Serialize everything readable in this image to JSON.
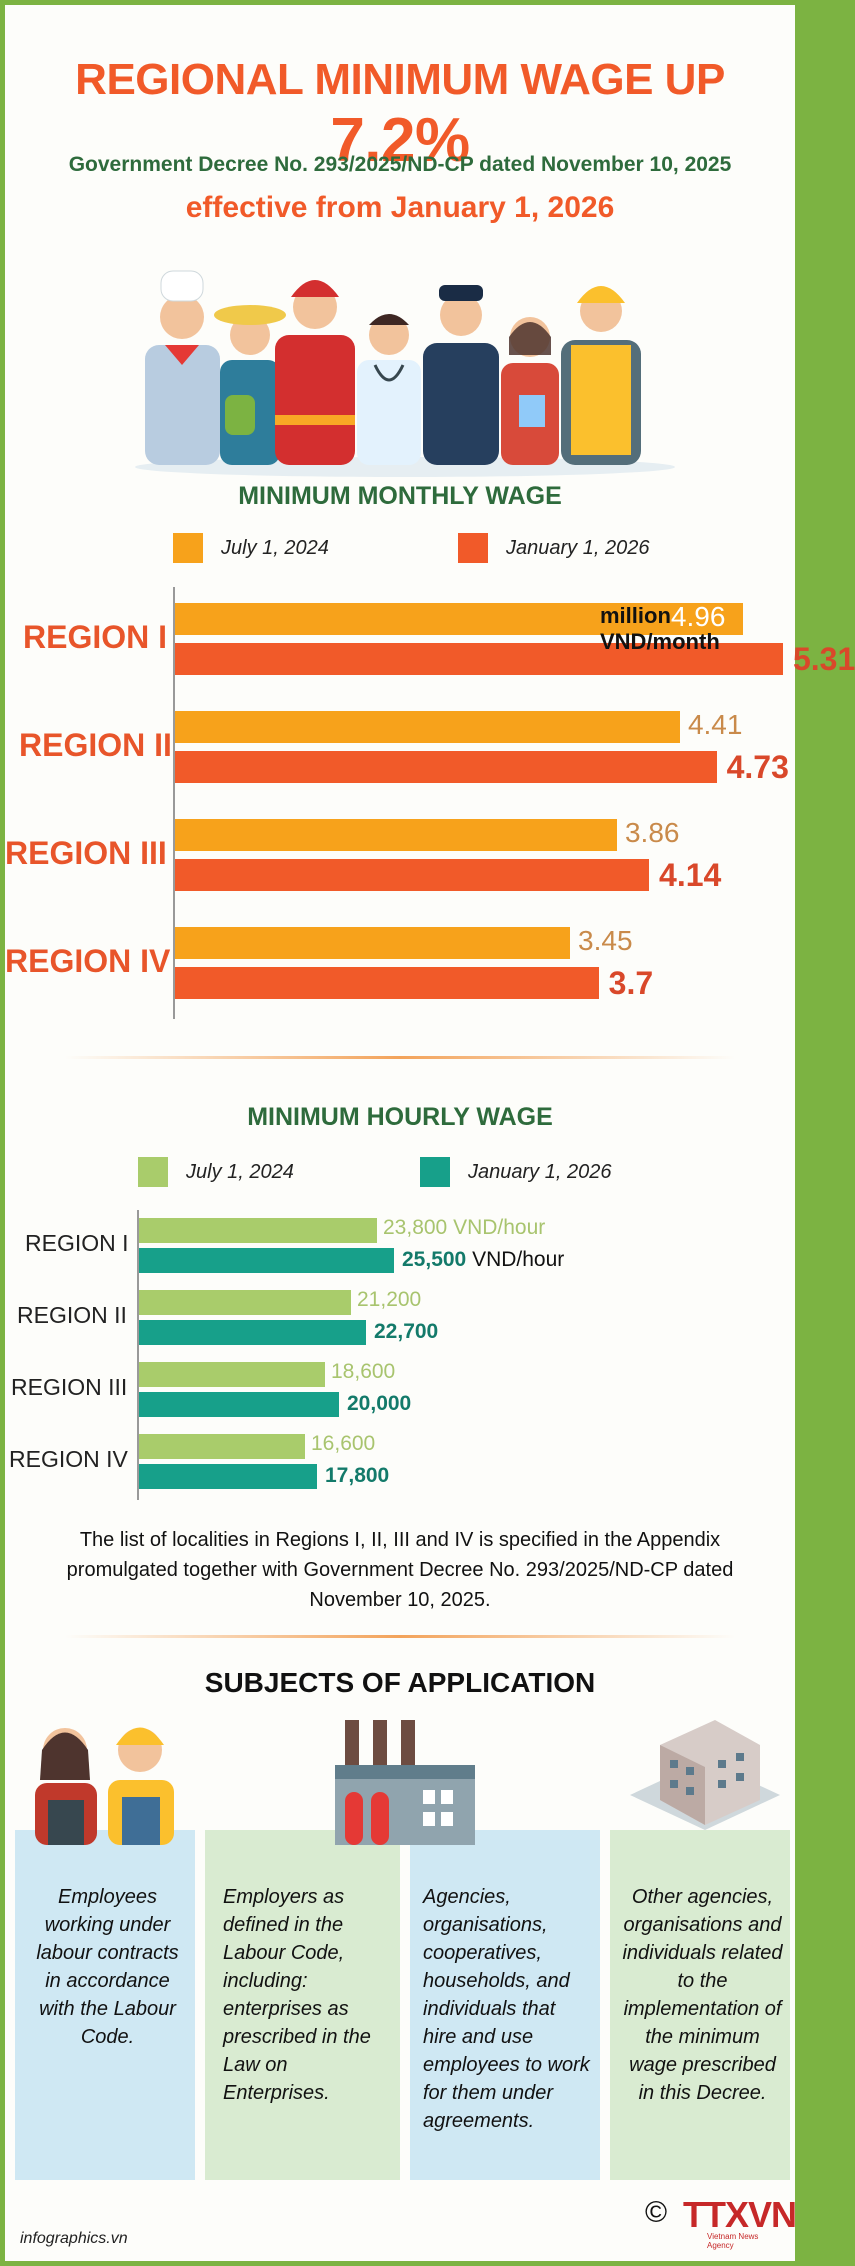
{
  "header": {
    "title_text": "REGIONAL MINIMUM WAGE UP",
    "title_pct": "7.2%",
    "decree": "Government Decree No. 293/2025/ND-CP dated November 10, 2025",
    "effective": "effective from January 1, 2026"
  },
  "monthly": {
    "title": "MINIMUM MONTHLY WAGE",
    "legend_old": "July 1, 2024",
    "legend_new": "January 1, 2026",
    "unit": "million VND/month",
    "color_old": "#f7a21b",
    "color_new": "#f15a29"
  },
  "hourly": {
    "title": "MINIMUM HOURLY WAGE",
    "legend_old": "July 1,  2024",
    "legend_new": "January 1, 2026",
    "unit": "VND/hour",
    "color_old": "#a9cc6b",
    "color_new": "#17a08a"
  },
  "chart_data": [
    {
      "type": "bar",
      "title": "MINIMUM MONTHLY WAGE",
      "categories": [
        "REGION I",
        "REGION II",
        "REGION III",
        "REGION IV"
      ],
      "series": [
        {
          "name": "July 1, 2024",
          "values": [
            4.96,
            4.41,
            3.86,
            3.45
          ]
        },
        {
          "name": "January 1, 2026",
          "values": [
            5.31,
            4.73,
            4.14,
            3.7
          ]
        }
      ],
      "labels_old": [
        "4.96",
        "4.41",
        "3.86",
        "3.45"
      ],
      "labels_new": [
        "5.31",
        "4.73",
        "4.14",
        "3.7"
      ],
      "unit": "million VND/month"
    },
    {
      "type": "bar",
      "title": "MINIMUM HOURLY WAGE",
      "categories": [
        "REGION I",
        "REGION II",
        "REGION III",
        "REGION IV"
      ],
      "series": [
        {
          "name": "July 1,  2024",
          "values": [
            23800,
            21200,
            18600,
            16600
          ]
        },
        {
          "name": "January 1, 2026",
          "values": [
            25500,
            22700,
            20000,
            17800
          ]
        }
      ],
      "labels_old": [
        "23,800",
        "21,200",
        "18,600",
        "16,600"
      ],
      "labels_new": [
        "25,500",
        "22,700",
        "20,000",
        "17,800"
      ],
      "unit": "VND/hour"
    }
  ],
  "note": "The list of localities in Regions I, II, III and IV is specified in the Appendix promulgated together with Government Decree No. 293/2025/ND-CP dated November 10, 2025.",
  "subjects": {
    "title": "SUBJECTS OF APPLICATION",
    "items": [
      "Employees working under labour contracts in accordance with the Labour Code.",
      "Employers as defined in the Labour Code, including: enterprises as prescribed in the Law on Enterprises.",
      "Agencies, organisations, cooperatives, households, and individuals that hire and use employees to work for them under agreements.",
      "Other agencies, organisations and individuals related to the implementation of the minimum wage prescribed in this Decree."
    ]
  },
  "footer": {
    "site": "infographics.vn",
    "copyright": "©",
    "logo": "TTXVN",
    "logo_sub": "Vietnam News Agency"
  }
}
